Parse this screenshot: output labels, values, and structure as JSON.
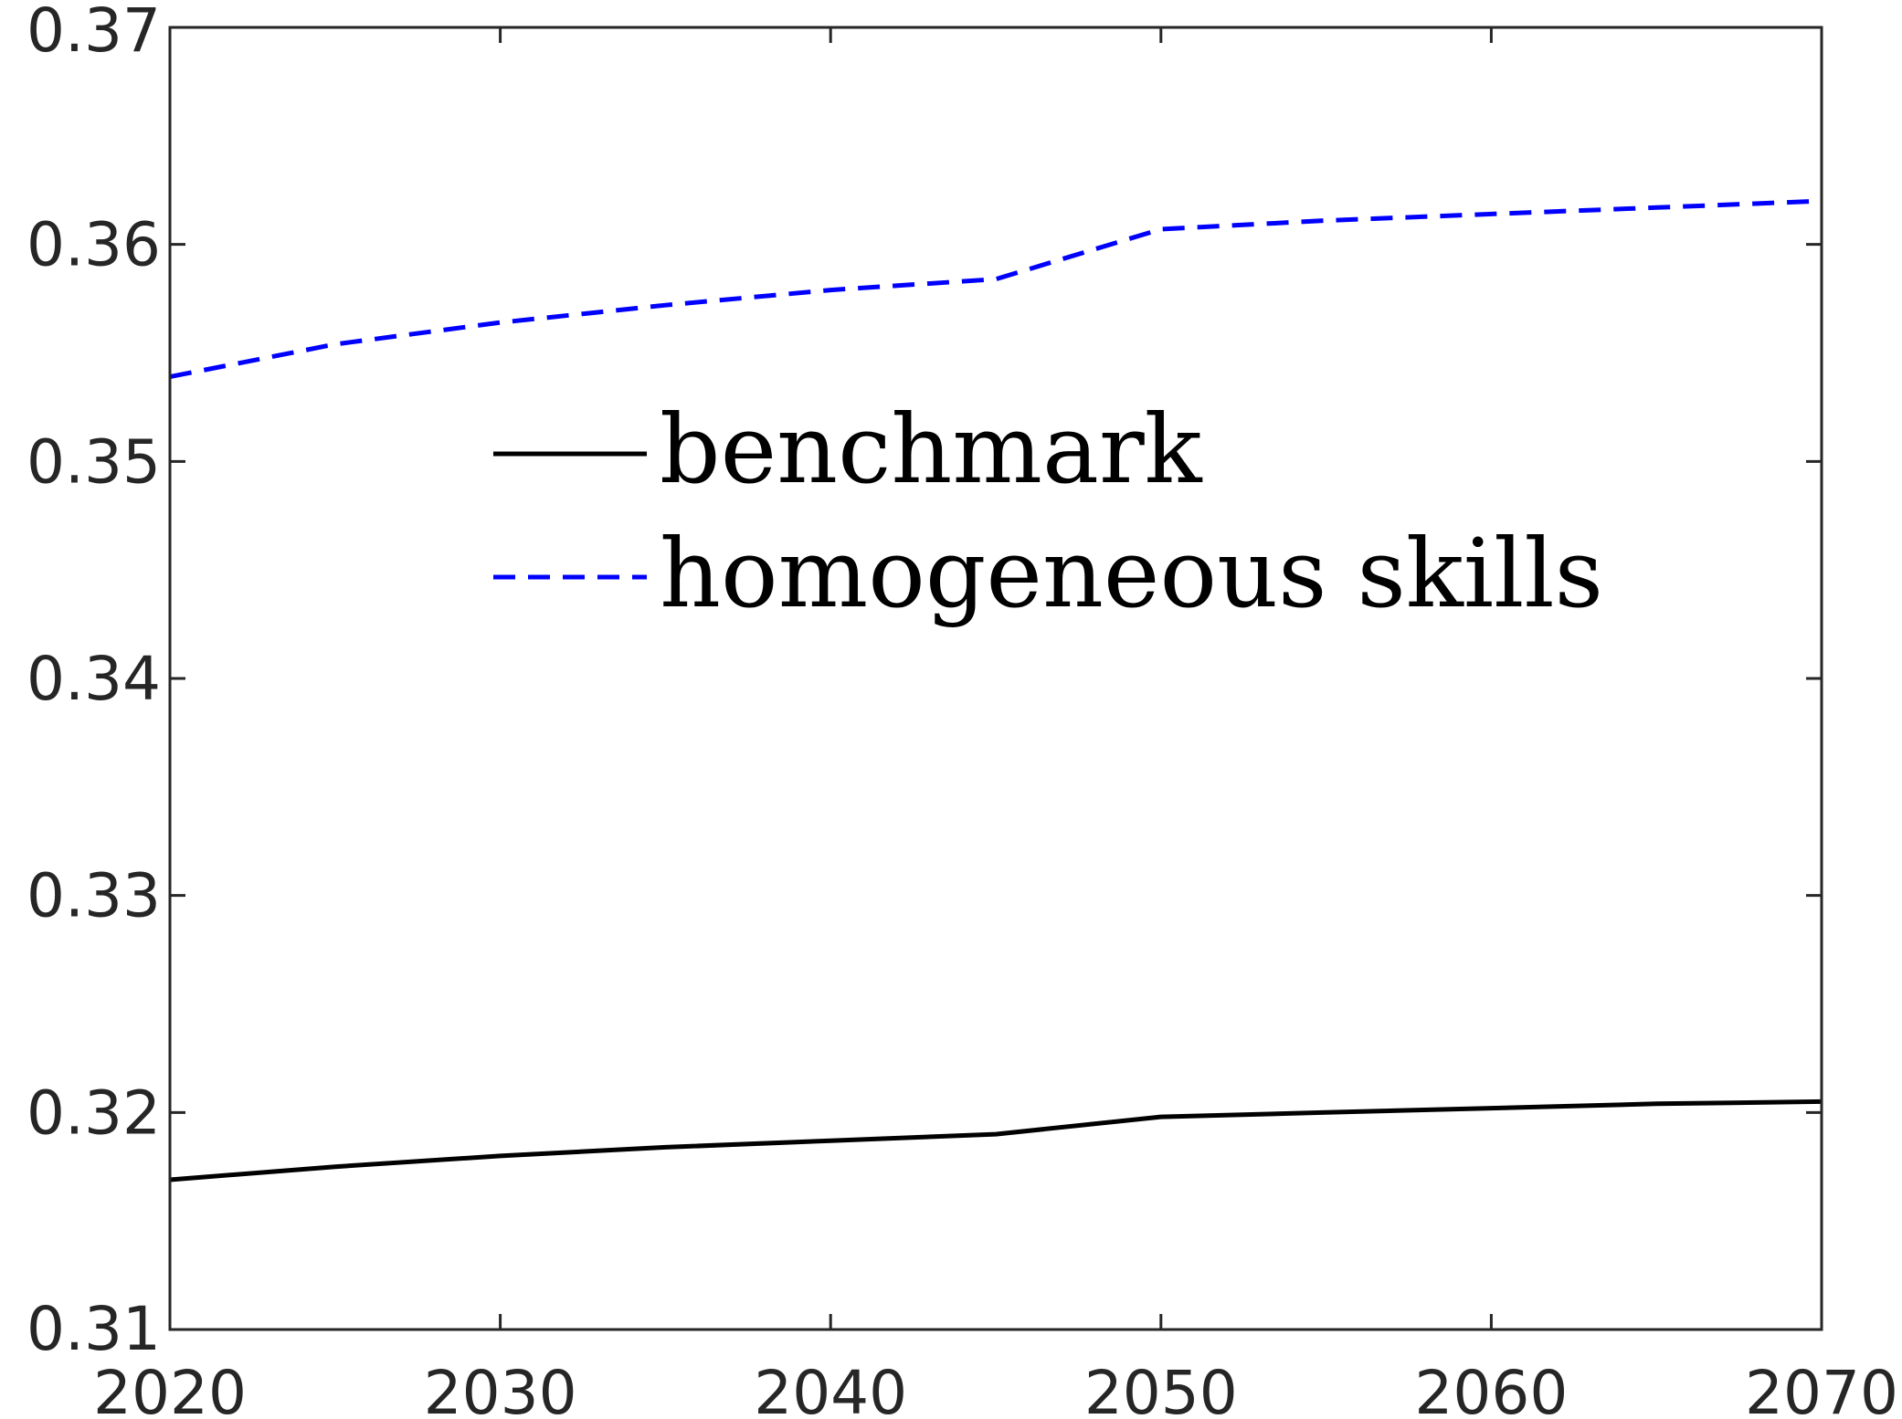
{
  "chart_data": {
    "type": "line",
    "title": "",
    "xlabel": "",
    "ylabel": "",
    "xlim": [
      2020,
      2070
    ],
    "ylim": [
      0.31,
      0.37
    ],
    "x_ticks": [
      2020,
      2030,
      2040,
      2050,
      2060,
      2070
    ],
    "x_tick_labels": [
      "2020",
      "2030",
      "2040",
      "2050",
      "2060",
      "2070"
    ],
    "y_ticks": [
      0.31,
      0.32,
      0.33,
      0.34,
      0.35,
      0.36,
      0.37
    ],
    "y_tick_labels": [
      "0.31",
      "0.32",
      "0.33",
      "0.34",
      "0.35",
      "0.36",
      "0.37"
    ],
    "grid": false,
    "legend_position": "upper-center",
    "x": [
      2020,
      2025,
      2030,
      2035,
      2040,
      2045,
      2050,
      2055,
      2060,
      2065,
      2070
    ],
    "series": [
      {
        "name": "benchmark",
        "color": "#000000",
        "dash": "solid",
        "values": [
          0.3169,
          0.3175,
          0.318,
          0.3184,
          0.3187,
          0.319,
          0.3198,
          0.32,
          0.3202,
          0.3204,
          0.3205
        ]
      },
      {
        "name": "homogeneous skills",
        "color": "#0000ff",
        "dash": "dashed",
        "values": [
          0.3539,
          0.3554,
          0.3564,
          0.3572,
          0.3579,
          0.3584,
          0.3607,
          0.3611,
          0.3614,
          0.3617,
          0.362
        ]
      }
    ]
  }
}
